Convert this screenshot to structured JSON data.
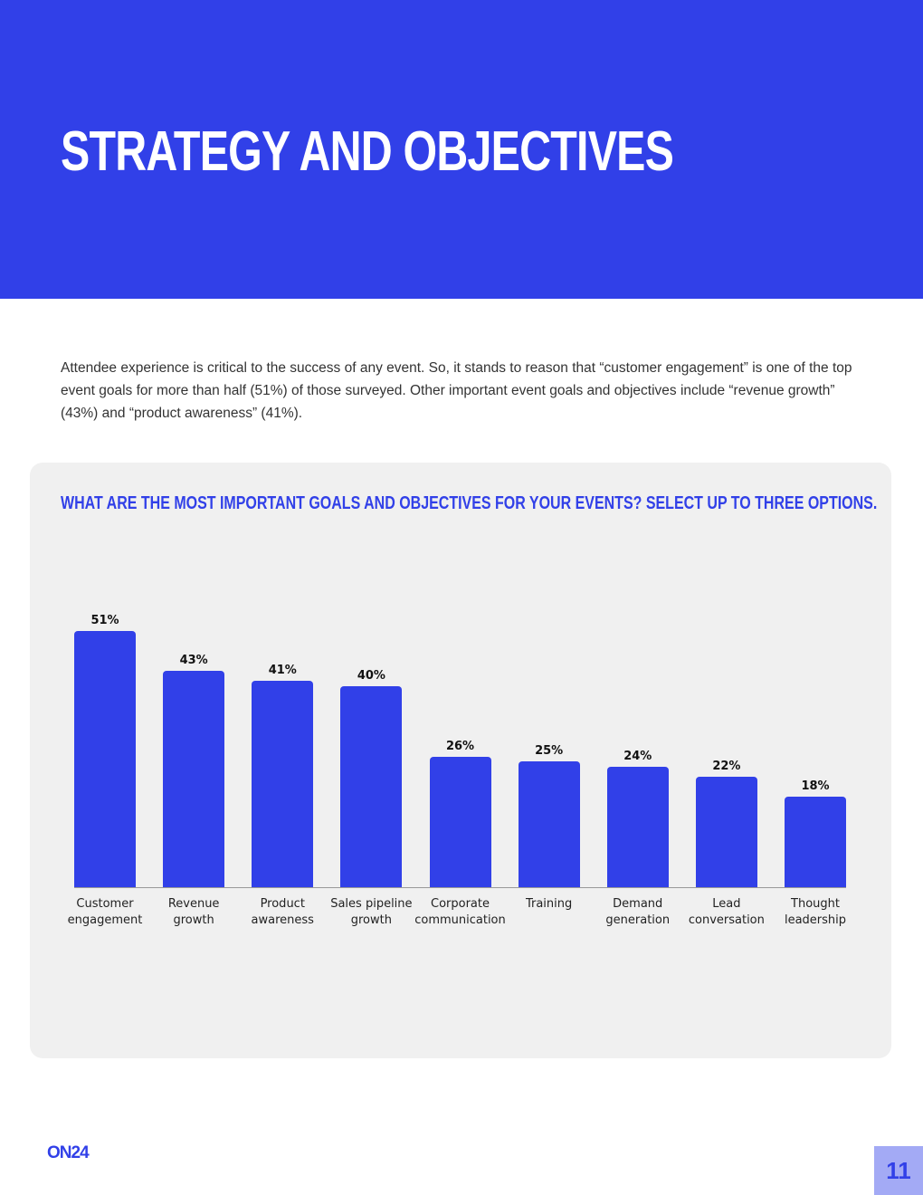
{
  "header": {
    "title": "STRATEGY AND OBJECTIVES"
  },
  "intro": "Attendee experience is critical to the success of any event. So, it stands to reason that “customer engagement” is one of the top event goals for more than half (51%) of those surveyed. Other important event goals and objectives include “revenue growth” (43%) and “product awareness” (41%).",
  "chart_data": {
    "type": "bar",
    "title": "WHAT ARE THE MOST IMPORTANT GOALS AND OBJECTIVES FOR YOUR EVENTS? SELECT UP TO THREE OPTIONS.",
    "categories": [
      "Customer engagement",
      "Revenue growth",
      "Product awareness",
      "Sales pipeline growth",
      "Corporate communication",
      "Training",
      "Demand generation",
      "Lead conversation",
      "Thought leadership"
    ],
    "values": [
      51,
      43,
      41,
      40,
      26,
      25,
      24,
      22,
      18
    ],
    "value_labels": [
      "51%",
      "43%",
      "41%",
      "40%",
      "26%",
      "25%",
      "24%",
      "22%",
      "18%"
    ],
    "color": "#3140e8"
  },
  "footer": {
    "logo": "ON24",
    "page_number": "11"
  }
}
